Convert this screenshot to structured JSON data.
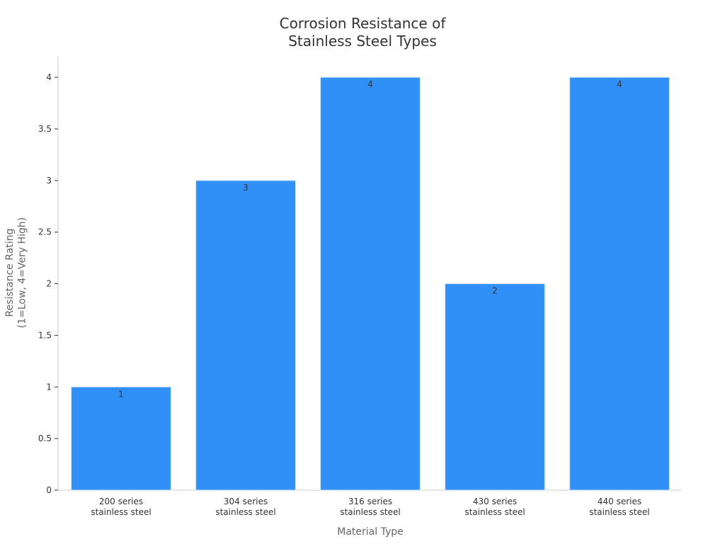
{
  "chart_data": {
    "type": "bar",
    "title": "Corrosion Resistance of\nStainless Steel Types",
    "x_label": "Material Type",
    "y_label": "Resistance Rating\n(1=Low, 4=Very High)",
    "categories": [
      "200 series\nstainless steel",
      "304 series\nstainless steel",
      "316 series\nstainless steel",
      "430 series\nstainless steel",
      "440 series\nstainless steel"
    ],
    "values": [
      1,
      3,
      4,
      2,
      4
    ],
    "color": "#3090f8",
    "ylim": [
      0,
      4.2
    ],
    "yticks": [
      0,
      0.5,
      1,
      1.5,
      2,
      2.5,
      3,
      3.5,
      4
    ],
    "grid": false
  }
}
